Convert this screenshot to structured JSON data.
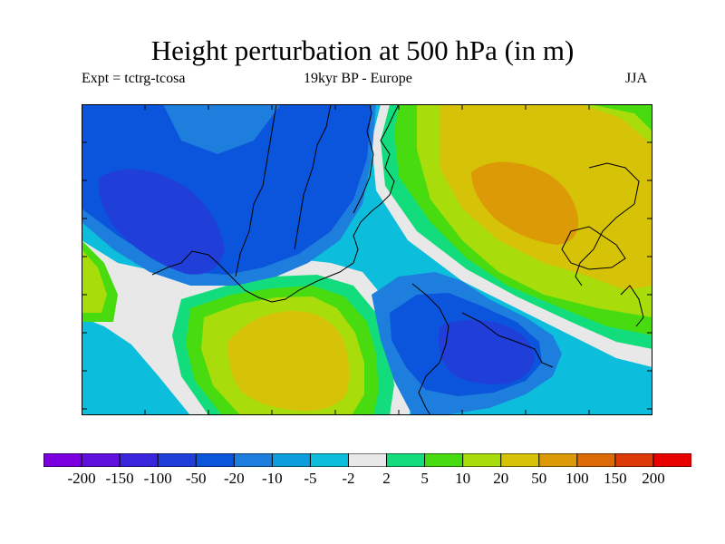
{
  "title": "Height perturbation at 500 hPa (in m)",
  "subtitle_left": "Expt = tctrg-tcosa",
  "subtitle_center": "19kyr BP - Europe",
  "subtitle_right": "JJA",
  "colorbar": {
    "colors": [
      "#7a00e0",
      "#6010dc",
      "#3a26dc",
      "#1f3fd8",
      "#0b54dc",
      "#1d7ede",
      "#0d9edc",
      "#0cbedc",
      "#e8e8e8",
      "#13dc7c",
      "#48dc10",
      "#a8dc0a",
      "#d6c206",
      "#dc9a06",
      "#dc6a06",
      "#dc3a06",
      "#e80000"
    ],
    "labels": [
      "-200",
      "-150",
      "-100",
      "-50",
      "-20",
      "-10",
      "-5",
      "-2",
      "2",
      "5",
      "10",
      "20",
      "50",
      "100",
      "150",
      "200"
    ]
  },
  "map": {
    "background_color": "#0cbedc",
    "levels": {
      "neutral": "#e8e8e8",
      "pos5": "#13dc7c",
      "pos10": "#48dc10",
      "pos20": "#a8dc0a",
      "pos50": "#d6c206",
      "pos100": "#dc9a06",
      "neg5": "#0d9edc",
      "neg10": "#1d7ede",
      "neg20": "#0b54dc",
      "neg50": "#1f3fd8",
      "neg100": "#3a26dc"
    }
  }
}
